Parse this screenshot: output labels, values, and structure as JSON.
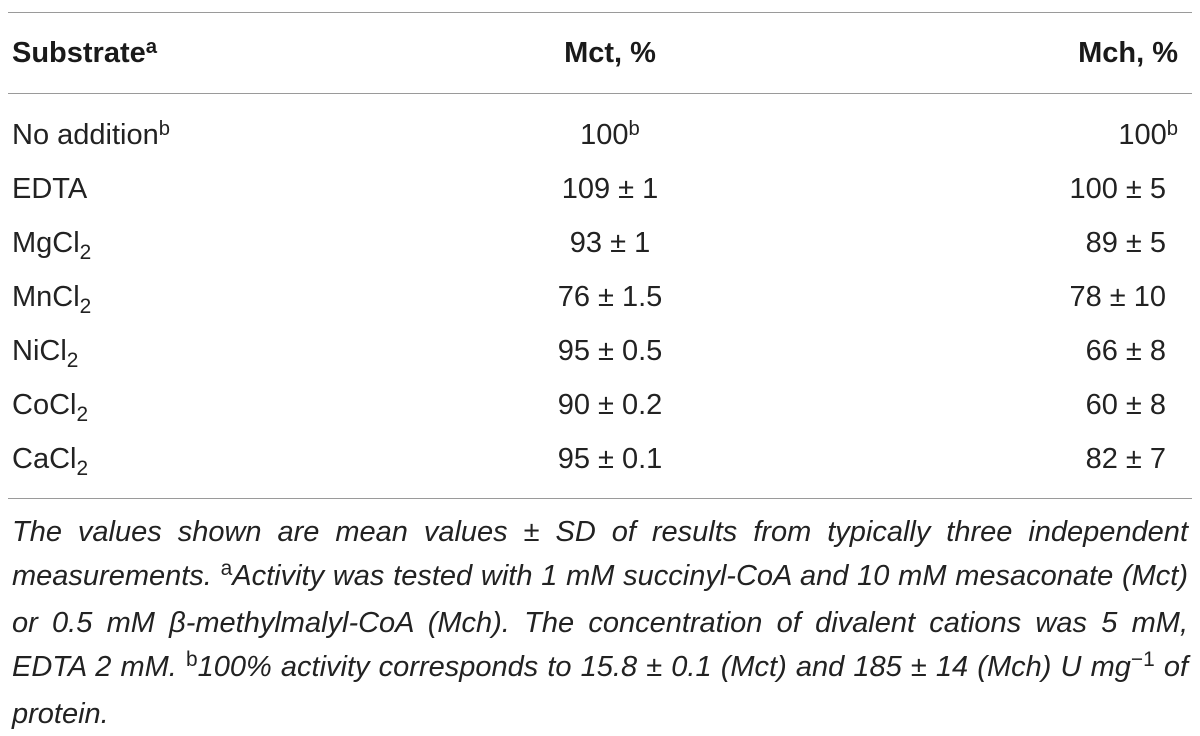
{
  "table": {
    "headers": {
      "substrate": "Substrate",
      "substrate_sup": "a",
      "mct": "Mct, %",
      "mch": "Mch, %"
    },
    "rows": [
      {
        "name": "No addition",
        "name_sup": "b",
        "name_sub": "",
        "mct": "100",
        "mct_sup": "b",
        "mch": "100",
        "mch_sup": "b"
      },
      {
        "name": "EDTA",
        "name_sup": "",
        "name_sub": "",
        "mct": "109 ± 1",
        "mct_sup": "",
        "mch": "100 ± 5",
        "mch_sup": ""
      },
      {
        "name": "MgCl",
        "name_sup": "",
        "name_sub": "2",
        "mct": "93 ± 1",
        "mct_sup": "",
        "mch": "89 ± 5",
        "mch_sup": ""
      },
      {
        "name": "MnCl",
        "name_sup": "",
        "name_sub": "2",
        "mct": "76 ± 1.5",
        "mct_sup": "",
        "mch": "78 ± 10",
        "mch_sup": ""
      },
      {
        "name": "NiCl",
        "name_sup": "",
        "name_sub": "2",
        "mct": "95 ± 0.5",
        "mct_sup": "",
        "mch": "66 ± 8",
        "mch_sup": ""
      },
      {
        "name": "CoCl",
        "name_sup": "",
        "name_sub": "2",
        "mct": "90 ± 0.2",
        "mct_sup": "",
        "mch": "60 ± 8",
        "mch_sup": ""
      },
      {
        "name": "CaCl",
        "name_sup": "",
        "name_sub": "2",
        "mct": "95 ± 0.1",
        "mct_sup": "",
        "mch": "82 ± 7",
        "mch_sup": ""
      }
    ]
  },
  "footnote": {
    "intro": "The values shown are mean values ± SD of results from typically three independent measurements.",
    "a_mark": "a",
    "a_text": "Activity was tested with 1 mM succinyl-CoA and 10 mM mesaconate (Mct) or 0.5 mM β-methylmalyl-CoA (Mch). The concentration of divalent cations was 5 mM, EDTA 2 mM.",
    "b_mark": "b",
    "b_text_1": "100% activity corresponds to 15.8 ± 0.1 (Mct) and 185 ± 14 (Mch) U mg",
    "b_exp": "−1",
    "b_text_2": "of protein."
  }
}
